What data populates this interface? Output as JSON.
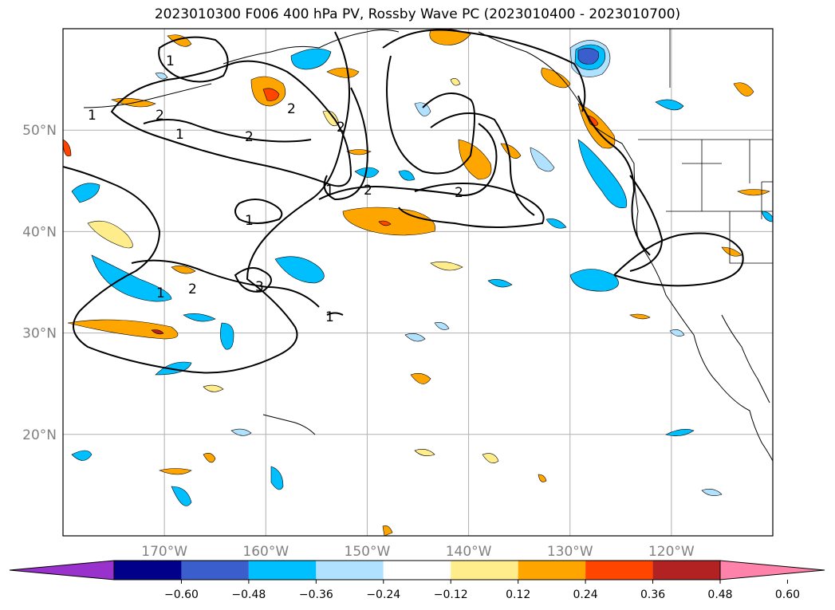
{
  "title": "2023010300 F006 400 hPa PV, Rossby Wave PC (2023010400 - 2023010700)",
  "map": {
    "lon_range": [
      -180,
      -110
    ],
    "lat_range": [
      10,
      60
    ],
    "lon_labels": [
      "170°W",
      "160°W",
      "150°W",
      "140°W",
      "130°W",
      "120°W"
    ],
    "lon_values": [
      -170,
      -160,
      -150,
      -140,
      -130,
      -120
    ],
    "lat_labels": [
      "20°N",
      "30°N",
      "40°N",
      "50°N"
    ],
    "lat_values": [
      20,
      30,
      40,
      50
    ],
    "grid": true
  },
  "colorbar": {
    "ticks": [
      "−0.60",
      "−0.48",
      "−0.36",
      "−0.24",
      "−0.12",
      "0.12",
      "0.24",
      "0.36",
      "0.48",
      "0.60"
    ],
    "colors": [
      "#9932cc",
      "#00008b",
      "#3a5fcd",
      "#00bfff",
      "#b0e2ff",
      "#ffffff",
      "#ffec8b",
      "#ffa500",
      "#ff4500",
      "#b22222",
      "#ff82ab"
    ],
    "extend": "both"
  },
  "contour_labels": [
    "1",
    "2",
    "1",
    "2",
    "2",
    "2",
    "1",
    "1",
    "2",
    "2",
    "1",
    "1",
    "2",
    "3",
    "1"
  ]
}
